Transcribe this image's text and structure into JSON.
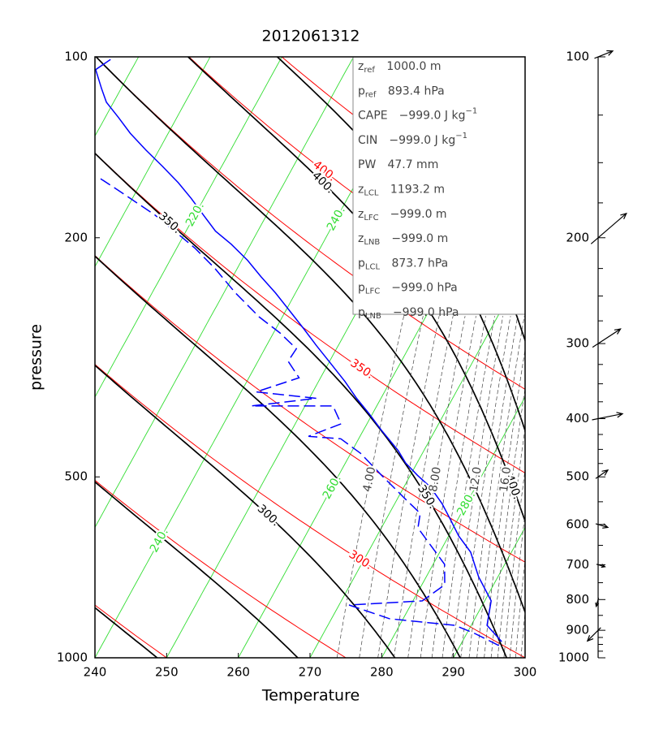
{
  "chart_data": [
    {
      "type": "skewt",
      "title": "2012061312",
      "xlabel": "Temperature",
      "ylabel": "pressure",
      "xlim": [
        240,
        300
      ],
      "ylim": [
        1000,
        100
      ],
      "ylog": true,
      "xticks": [
        240,
        250,
        260,
        270,
        280,
        290,
        300
      ],
      "yticks": [
        100,
        200,
        500,
        1000
      ],
      "isotherms": {
        "color": "#33dd33",
        "values": [
          190,
          200,
          210,
          220,
          230,
          240,
          250,
          260,
          270,
          280,
          290,
          300
        ],
        "labels": [
          {
            "value": 220,
            "label": "220."
          },
          {
            "value": 240,
            "label": "240."
          },
          {
            "value": 240,
            "label": "240."
          },
          {
            "value": 260,
            "label": "260."
          },
          {
            "value": 280,
            "label": "280."
          }
        ]
      },
      "dry_adiabats": {
        "color": "#ff0000",
        "values": [
          250,
          275,
          300,
          325,
          350,
          375,
          400,
          425,
          450,
          475,
          500
        ],
        "labels": [
          {
            "value": 300,
            "label": "300."
          },
          {
            "value": 350,
            "label": "350."
          },
          {
            "value": 400,
            "label": "400."
          }
        ]
      },
      "moist_adiabats": {
        "color": "#000000",
        "values": [
          250,
          275,
          300,
          325,
          350,
          375,
          400,
          425,
          450,
          475,
          500
        ],
        "labels": [
          {
            "value": 300,
            "label": "300."
          },
          {
            "value": 350,
            "label": "350."
          },
          {
            "value": 350,
            "label": "350."
          },
          {
            "value": 400,
            "label": "400."
          },
          {
            "value": 400,
            "label": "400."
          }
        ]
      },
      "mixing_ratio": {
        "color": "#444444",
        "values": [
          4,
          5,
          6,
          7,
          8,
          9,
          10,
          11,
          12,
          13,
          14,
          15,
          16,
          17,
          18,
          19,
          20,
          21,
          22
        ],
        "labels": [
          {
            "value": 4,
            "label": "4.00"
          },
          {
            "value": 8,
            "label": "8.00"
          },
          {
            "value": 12,
            "label": "12.0"
          },
          {
            "value": 16,
            "label": "16.0"
          }
        ]
      },
      "series": [
        {
          "color": "#0000ff",
          "dashed": false,
          "pressure": [
            940,
            883,
            804,
            733,
            667,
            627,
            589,
            554,
            520,
            497,
            474,
            452,
            418,
            393,
            370,
            347,
            321,
            302,
            284,
            267,
            247,
            232,
            218,
            205,
            195,
            183,
            172,
            162,
            152,
            143,
            134,
            126,
            119,
            113,
            105,
            101
          ],
          "values": [
            295.5,
            292.2,
            290.9,
            287.3,
            284.3,
            281.4,
            279.0,
            276.6,
            273.7,
            271.0,
            268.4,
            266.4,
            262.5,
            259.6,
            256.6,
            253.7,
            249.9,
            246.9,
            244.0,
            241.0,
            237.2,
            233.9,
            230.8,
            227.3,
            224.1,
            221.1,
            218.2,
            215.2,
            211.7,
            208.2,
            204.7,
            201.8,
            199.0,
            197.3,
            195.0,
            196.3
          ]
        },
        {
          "color": "#0000ff",
          "dashed": true,
          "pressure": [
            954,
            911,
            883,
            861,
            817,
            804,
            756,
            699,
            647,
            608,
            575,
            545,
            497,
            457,
            432,
            428,
            408,
            381,
            381,
            370,
            361,
            342,
            321,
            306,
            288,
            271,
            247,
            225,
            208,
            195,
            183,
            172,
            165,
            159
          ],
          "values": [
            295.4,
            291.1,
            287.7,
            278.1,
            271.4,
            281.3,
            283.2,
            281.6,
            278.0,
            275.1,
            274.3,
            271.2,
            266.0,
            261.4,
            257.5,
            252.8,
            256.4,
            253.9,
            242.5,
            251.0,
            242.1,
            247.0,
            244.2,
            244.4,
            240.9,
            236.8,
            231.6,
            226.9,
            222.5,
            218.4,
            214.3,
            209.7,
            206.6,
            203.8
          ]
        }
      ],
      "info_box": [
        {
          "label": "z",
          "sub": "ref",
          "value": "1000.0 m"
        },
        {
          "label": "p",
          "sub": "ref",
          "value": "893.4 hPa"
        },
        {
          "label": "CAPE",
          "value": "−999.0 J kg",
          "sup": "−1"
        },
        {
          "label": "CIN",
          "value": "−999.0 J kg",
          "sup": "−1"
        },
        {
          "label": "PW",
          "value": "47.7 mm"
        },
        {
          "label": "z",
          "sub": "LCL",
          "value": "1193.2 m"
        },
        {
          "label": "z",
          "sub": "LFC",
          "value": "−999.0 m"
        },
        {
          "label": "z",
          "sub": "LNB",
          "value": "−999.0 m"
        },
        {
          "label": "p",
          "sub": "LCL",
          "value": "873.7 hPa"
        },
        {
          "label": "p",
          "sub": "LFC",
          "value": "−999.0 hPa"
        },
        {
          "label": "p",
          "sub": "LNB",
          "value": "−999.0 hPa"
        }
      ]
    },
    {
      "type": "wind",
      "ylim": [
        1000,
        100
      ],
      "ylog": true,
      "yticks": [
        100,
        200,
        300,
        400,
        500,
        600,
        700,
        800,
        900,
        1000
      ],
      "minor_yticks": [
        125,
        150,
        175,
        225,
        250,
        275,
        325,
        350,
        375,
        425,
        450,
        475,
        550,
        650,
        750,
        850,
        925,
        950,
        975
      ],
      "color": "#000000",
      "levels": [
        100,
        200,
        300,
        400,
        500,
        600,
        700,
        800,
        900
      ],
      "u": [
        15,
        29,
        23,
        25,
        10,
        10,
        7,
        -2,
        -11
      ],
      "v": [
        6,
        25,
        15,
        5,
        7,
        -3,
        -2,
        -7,
        -11
      ]
    }
  ]
}
